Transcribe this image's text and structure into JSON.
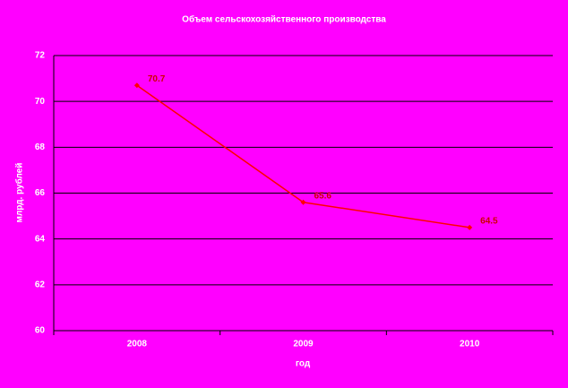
{
  "chart_data": {
    "type": "line",
    "title": "Объем сельскохозяйственного производства",
    "x_label": "год",
    "y_label": "млрд. рублей",
    "categories": [
      "2008",
      "2009",
      "2010"
    ],
    "values": [
      70.7,
      65.6,
      64.5
    ],
    "color": "#ff0000",
    "ylim": [
      60,
      72
    ],
    "yticks": [
      60,
      62,
      64,
      66,
      68,
      70,
      72
    ],
    "grid": true
  }
}
